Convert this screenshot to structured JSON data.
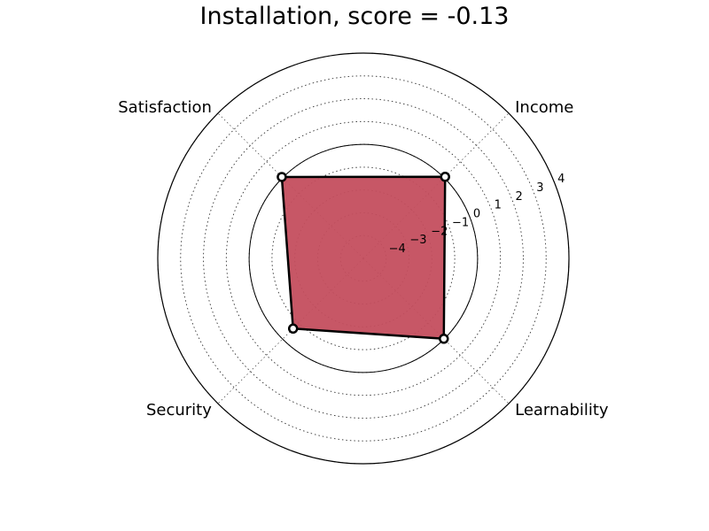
{
  "chart_data": {
    "type": "radar",
    "title": "Installation, score = -0.13",
    "axes": [
      "Income",
      "Satisfaction",
      "Security",
      "Learnability"
    ],
    "values": [
      0.06,
      0.05,
      -0.65,
      -0.02
    ],
    "rlim": [
      -5,
      4
    ],
    "rticks": [
      -4,
      -3,
      -2,
      -1,
      0,
      1,
      2,
      3,
      4
    ],
    "rtick_labels": [
      "−4",
      "−3",
      "−2",
      "−1",
      "0",
      "1",
      "2",
      "3",
      "4"
    ],
    "zero_ring": 0,
    "grid": true,
    "fill_color": "#c44e5e",
    "line_color": "#000000",
    "marker_fill": "#ffffff"
  }
}
